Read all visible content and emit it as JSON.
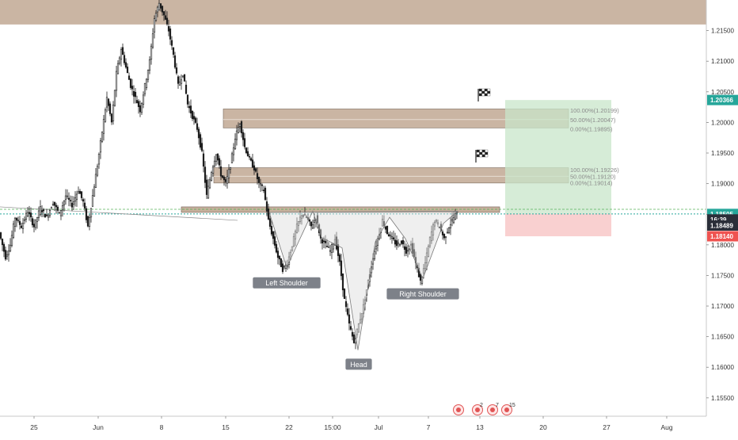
{
  "chart_data": {
    "type": "candlestick",
    "instrument_hint": "EURUSD-style price chart (daily/4H)",
    "x_ticks": [
      "25",
      "Jun",
      "8",
      "15",
      "22",
      "15:00",
      "Jul",
      "7",
      "13",
      "20",
      "27",
      "Aug"
    ],
    "y_ticks": [
      "1.21500",
      "1.21000",
      "1.20500",
      "1.20000",
      "1.19500",
      "1.19000",
      "1.18500",
      "1.18000",
      "1.17500",
      "1.17000",
      "1.16500",
      "1.16000",
      "1.15500"
    ],
    "ylim": [
      1.152,
      1.22
    ],
    "price_path": [
      [
        0,
        1.182
      ],
      [
        8,
        1.178
      ],
      [
        14,
        1.18
      ],
      [
        20,
        1.1845
      ],
      [
        28,
        1.183
      ],
      [
        36,
        1.1855
      ],
      [
        44,
        1.183
      ],
      [
        52,
        1.186
      ],
      [
        60,
        1.1845
      ],
      [
        68,
        1.187
      ],
      [
        76,
        1.185
      ],
      [
        84,
        1.188
      ],
      [
        92,
        1.1865
      ],
      [
        100,
        1.189
      ],
      [
        106,
        1.187
      ],
      [
        112,
        1.183
      ],
      [
        118,
        1.188
      ],
      [
        124,
        1.193
      ],
      [
        130,
        1.1985
      ],
      [
        136,
        1.204
      ],
      [
        142,
        1.2
      ],
      [
        148,
        1.208
      ],
      [
        154,
        1.212
      ],
      [
        160,
        1.209
      ],
      [
        166,
        1.206
      ],
      [
        172,
        1.204
      ],
      [
        178,
        1.202
      ],
      [
        184,
        1.206
      ],
      [
        190,
        1.21
      ],
      [
        196,
        1.217
      ],
      [
        202,
        1.2195
      ],
      [
        208,
        1.2175
      ],
      [
        214,
        1.215
      ],
      [
        220,
        1.211
      ],
      [
        226,
        1.206
      ],
      [
        232,
        1.208
      ],
      [
        238,
        1.203
      ],
      [
        244,
        1.201
      ],
      [
        250,
        1.199
      ],
      [
        256,
        1.195
      ],
      [
        262,
        1.188
      ],
      [
        268,
        1.192
      ],
      [
        274,
        1.195
      ],
      [
        280,
        1.1915
      ],
      [
        286,
        1.19
      ],
      [
        292,
        1.193
      ],
      [
        298,
        1.1975
      ],
      [
        304,
        1.2
      ],
      [
        310,
        1.196
      ],
      [
        316,
        1.194
      ],
      [
        322,
        1.1925
      ],
      [
        328,
        1.19
      ],
      [
        334,
        1.189
      ],
      [
        340,
        1.184
      ],
      [
        346,
        1.181
      ],
      [
        352,
        1.178
      ],
      [
        358,
        1.176
      ],
      [
        364,
        1.177
      ],
      [
        370,
        1.18
      ],
      [
        376,
        1.183
      ],
      [
        382,
        1.185
      ],
      [
        388,
        1.1845
      ],
      [
        394,
        1.183
      ],
      [
        400,
        1.1845
      ],
      [
        406,
        1.181
      ],
      [
        412,
        1.18
      ],
      [
        418,
        1.179
      ],
      [
        424,
        1.181
      ],
      [
        430,
        1.177
      ],
      [
        436,
        1.171
      ],
      [
        442,
        1.167
      ],
      [
        448,
        1.164
      ],
      [
        454,
        1.167
      ],
      [
        460,
        1.17
      ],
      [
        466,
        1.174
      ],
      [
        472,
        1.178
      ],
      [
        478,
        1.181
      ],
      [
        484,
        1.184
      ],
      [
        490,
        1.182
      ],
      [
        496,
        1.181
      ],
      [
        502,
        1.18
      ],
      [
        508,
        1.1805
      ],
      [
        514,
        1.179
      ],
      [
        520,
        1.18
      ],
      [
        526,
        1.177
      ],
      [
        532,
        1.174
      ],
      [
        538,
        1.177
      ],
      [
        544,
        1.181
      ],
      [
        550,
        1.184
      ],
      [
        556,
        1.183
      ],
      [
        562,
        1.181
      ],
      [
        568,
        1.183
      ],
      [
        574,
        1.1845
      ],
      [
        578,
        1.1852
      ]
    ],
    "zones": [
      {
        "name": "top-resistance",
        "y_top": 1.22,
        "y_bottom": 1.216
      },
      {
        "name": "upper-target-zone",
        "y_top": 1.2022,
        "y_bottom": 1.1991
      },
      {
        "name": "mid-target-zone",
        "y_top": 1.1926,
        "y_bottom": 1.1901
      },
      {
        "name": "neckline-zone",
        "y_top": 1.186,
        "y_bottom": 1.1853
      }
    ],
    "fib_labels": [
      {
        "text": "100.00%(1.20199)",
        "price": 1.20199
      },
      {
        "text": "50.00%(1.20047)",
        "price": 1.20047
      },
      {
        "text": "0.00%(1.19895)",
        "price": 1.19895
      },
      {
        "text": "100.00%(1.19226)",
        "price": 1.19226
      },
      {
        "text": "50.00%(1.19120)",
        "price": 1.1912
      },
      {
        "text": "0.00%(1.19014)",
        "price": 1.19014
      }
    ],
    "position": {
      "target": 1.20366,
      "entry": 1.18505,
      "stop": 1.1814
    },
    "pattern_labels": [
      "Left Shoulder",
      "Head",
      "Right Shoulder"
    ],
    "price_tags": [
      {
        "text": "1.20366",
        "price": 1.20366,
        "color": "#26a69a"
      },
      {
        "text": "1.18505",
        "price": 1.18505,
        "color": "#26a69a"
      },
      {
        "text": "16:39",
        "price": 1.18415,
        "color": "#2a2e39"
      },
      {
        "text": "1.18489",
        "price": 1.18315,
        "color": "#2a2e39"
      },
      {
        "text": "1.18140",
        "price": 1.1814,
        "color": "#ef5350"
      }
    ],
    "event_icons": [
      "2",
      "7",
      "15"
    ],
    "colors": {
      "zone": "#b89c84",
      "profit": "#c8e6c9",
      "loss": "#f8c4c4",
      "green_tag": "#26a69a",
      "red_tag": "#ef5350",
      "dark_tag": "#2a2e39"
    }
  }
}
